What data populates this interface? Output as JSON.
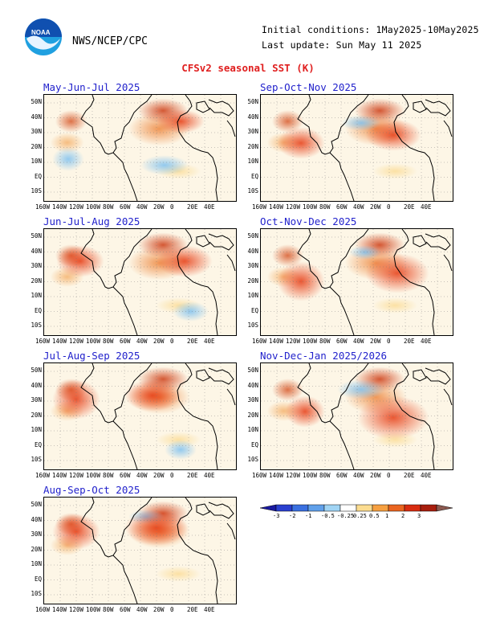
{
  "header": {
    "agency": "NWS/NCEP/CPC",
    "initial_conditions": "Initial conditions: 1May2025-10May2025",
    "last_update": "Last update: Sun May 11 2025",
    "title": "CFSv2 seasonal SST (K)",
    "logo_text": "NOAA"
  },
  "panels": [
    {
      "title": "May-Jun-Jul 2025"
    },
    {
      "title": "Sep-Oct-Nov 2025"
    },
    {
      "title": "Jun-Jul-Aug 2025"
    },
    {
      "title": "Oct-Nov-Dec 2025"
    },
    {
      "title": "Jul-Aug-Sep 2025"
    },
    {
      "title": "Nov-Dec-Jan 2025/2026"
    },
    {
      "title": "Aug-Sep-Oct 2025"
    }
  ],
  "lat_labels": [
    "50N",
    "40N",
    "30N",
    "20N",
    "10N",
    "EQ",
    "10S"
  ],
  "lon_labels": [
    "160W",
    "140W",
    "120W",
    "100W",
    "80W",
    "60W",
    "40W",
    "20W",
    "0",
    "20E",
    "40E"
  ],
  "colorbar": {
    "labels": [
      "-3",
      "-2",
      "-1",
      "-0.5",
      "-0.25",
      "0.25",
      "0.5",
      "1",
      "2",
      "3"
    ],
    "colors": [
      "#1a1aa0",
      "#2a40d0",
      "#3a70e0",
      "#60a0ea",
      "#a0d4f4",
      "#ffffff",
      "#fbdc90",
      "#f6a040",
      "#ea6520",
      "#d82c10",
      "#a81e0e",
      "#8c5a50"
    ]
  }
}
